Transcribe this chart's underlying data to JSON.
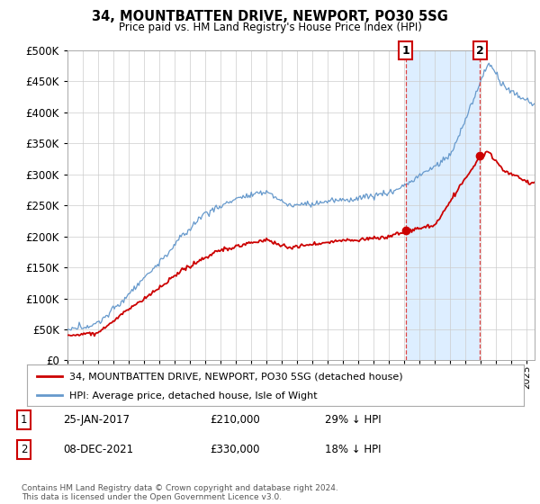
{
  "title": "34, MOUNTBATTEN DRIVE, NEWPORT, PO30 5SG",
  "subtitle": "Price paid vs. HM Land Registry's House Price Index (HPI)",
  "hpi_color": "#6699cc",
  "price_color": "#cc0000",
  "marker_color": "#cc0000",
  "annotation1_label": "1",
  "annotation1_date": "25-JAN-2017",
  "annotation1_price": 210000,
  "annotation1_pct": "29% ↓ HPI",
  "annotation1_year": 2017.07,
  "annotation2_label": "2",
  "annotation2_date": "08-DEC-2021",
  "annotation2_price": 330000,
  "annotation2_pct": "18% ↓ HPI",
  "annotation2_year": 2021.93,
  "legend_label1": "34, MOUNTBATTEN DRIVE, NEWPORT, PO30 5SG (detached house)",
  "legend_label2": "HPI: Average price, detached house, Isle of Wight",
  "footer": "Contains HM Land Registry data © Crown copyright and database right 2024.\nThis data is licensed under the Open Government Licence v3.0.",
  "ylim": [
    0,
    500000
  ],
  "yticks": [
    0,
    50000,
    100000,
    150000,
    200000,
    250000,
    300000,
    350000,
    400000,
    450000,
    500000
  ],
  "xlim_left": 1995,
  "xlim_right": 2025.5,
  "shade_color": "#ddeeff",
  "vline_color": "#dd4444",
  "background_color": "#ffffff",
  "grid_color": "#cccccc"
}
